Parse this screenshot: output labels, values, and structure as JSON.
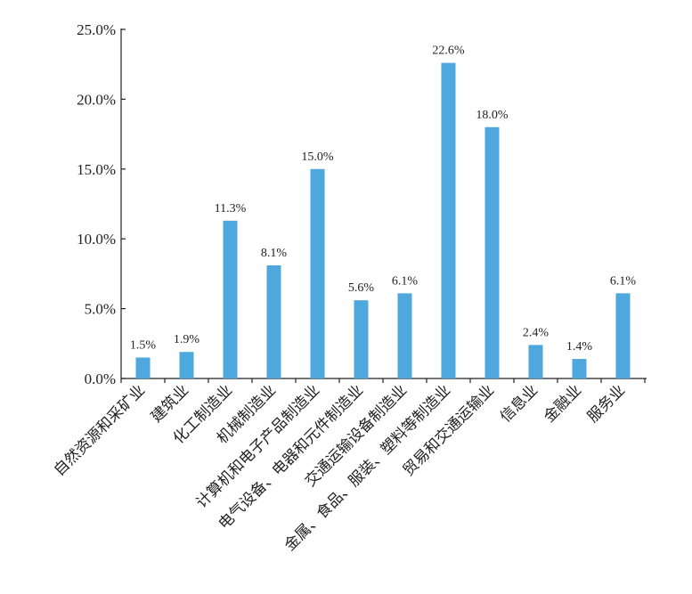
{
  "chart_data": {
    "type": "bar",
    "categories": [
      "自然资源和采矿业",
      "建筑业",
      "化工制造业",
      "机械制造业",
      "计算机和电子产品制造业",
      "电气设备、电器和元件制造业",
      "交通运输设备制造业",
      "金属、食品、服装、塑料等制造业",
      "贸易和交通运输业",
      "信息业",
      "金融业",
      "服务业"
    ],
    "values": [
      1.5,
      1.9,
      11.3,
      8.1,
      15.0,
      5.6,
      6.1,
      22.6,
      18.0,
      2.4,
      1.4,
      6.1
    ],
    "data_labels": [
      "1.5%",
      "1.9%",
      "11.3%",
      "8.1%",
      "15.0%",
      "5.6%",
      "6.1%",
      "22.6%",
      "18.0%",
      "2.4%",
      "1.4%",
      "6.1%"
    ],
    "y_ticks": [
      "0.0%",
      "5.0%",
      "10.0%",
      "15.0%",
      "20.0%",
      "25.0%"
    ],
    "ylim": [
      0,
      25
    ],
    "bar_color": "#4ea8de",
    "grid": false,
    "title": "",
    "xlabel": "",
    "ylabel": ""
  }
}
